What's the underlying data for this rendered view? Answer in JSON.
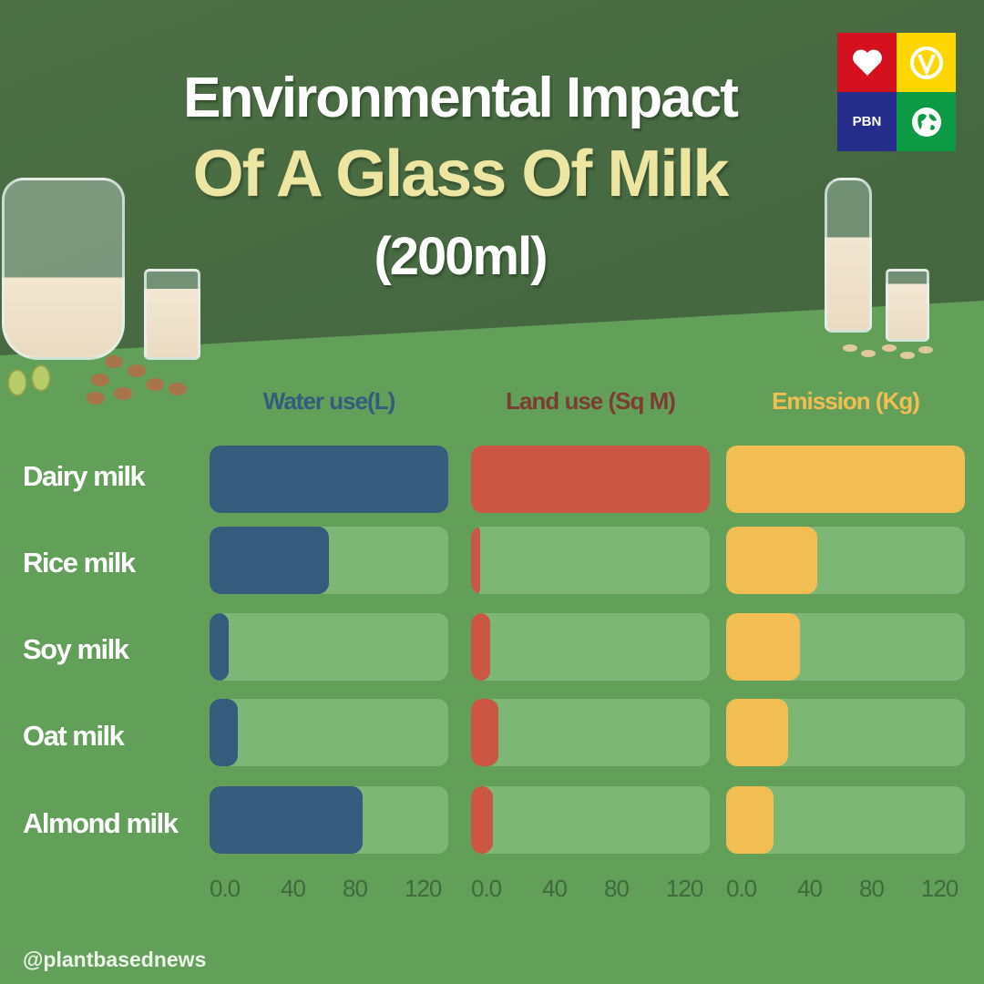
{
  "header": {
    "title_line_1": "Environmental Impact",
    "title_line_2": "Of A Glass Of Milk",
    "title_line_3": "(200ml)"
  },
  "logo": {
    "tiles": [
      {
        "icon": "heart-icon",
        "color": "#d4101e"
      },
      {
        "icon": "v-circle-icon",
        "color": "#ffd700"
      },
      {
        "icon": "pbn-text",
        "label": "PBN",
        "color": "#252c8a"
      },
      {
        "icon": "globe-icon",
        "color": "#0d9a44"
      }
    ]
  },
  "colors": {
    "water": "#355b7d",
    "land": "#cb5643",
    "emission": "#f2bd52",
    "track": "rgba(160,210,150,0.45)",
    "water_header": "#355b7d",
    "land_header": "#7d3b32",
    "emission_header": "#f2bd52"
  },
  "columns": [
    {
      "key": "water",
      "label": "Water use(L)"
    },
    {
      "key": "land",
      "label": "Land use (Sq M)"
    },
    {
      "key": "emission",
      "label": "Emission (Kg)"
    }
  ],
  "rows": [
    {
      "label": "Dairy milk",
      "water_pct": 100,
      "land_pct": 100,
      "emission_pct": 100
    },
    {
      "label": "Rice milk",
      "water_pct": 50,
      "land_pct": 4,
      "emission_pct": 38
    },
    {
      "label": "Soy milk",
      "water_pct": 8,
      "land_pct": 8,
      "emission_pct": 31
    },
    {
      "label": "Oat milk",
      "water_pct": 12,
      "land_pct": 11.5,
      "emission_pct": 26
    },
    {
      "label": "Almond milk",
      "water_pct": 64,
      "land_pct": 9,
      "emission_pct": 20
    }
  ],
  "axis_ticks": [
    "0.0",
    "40",
    "80",
    "120"
  ],
  "footer": {
    "handle": "@plantbasednews"
  },
  "chart_data": {
    "type": "bar",
    "orientation": "horizontal",
    "title": "Environmental Impact Of A Glass Of Milk (200ml)",
    "categories": [
      "Dairy milk",
      "Rice milk",
      "Soy milk",
      "Oat milk",
      "Almond milk"
    ],
    "note": "No data labels are shown in the image; values are estimated from bar lengths against the 0.0–120 axis ticks (panel width ≈ 0–130).",
    "panels": [
      {
        "name": "Water use(L)",
        "color": "#355b7d",
        "xlim": [
          0,
          130
        ],
        "xticks": [
          "0.0",
          "40",
          "80",
          "120"
        ],
        "values": [
          130,
          65,
          10,
          15,
          85
        ],
        "fill_fraction": [
          1.0,
          0.5,
          0.08,
          0.12,
          0.64
        ]
      },
      {
        "name": "Land use (Sq M)",
        "color": "#cb5643",
        "xlim": [
          0,
          130
        ],
        "xticks": [
          "0.0",
          "40",
          "80",
          "120"
        ],
        "values": [
          130,
          5,
          10,
          15,
          10
        ],
        "fill_fraction": [
          1.0,
          0.04,
          0.08,
          0.115,
          0.09
        ]
      },
      {
        "name": "Emission (Kg)",
        "color": "#f2bd52",
        "xlim": [
          0,
          130
        ],
        "xticks": [
          "0.0",
          "40",
          "80",
          "120"
        ],
        "values": [
          130,
          50,
          40,
          35,
          25
        ],
        "fill_fraction": [
          1.0,
          0.38,
          0.31,
          0.26,
          0.2
        ]
      }
    ],
    "grid": false,
    "legend": "column headers above each panel"
  }
}
